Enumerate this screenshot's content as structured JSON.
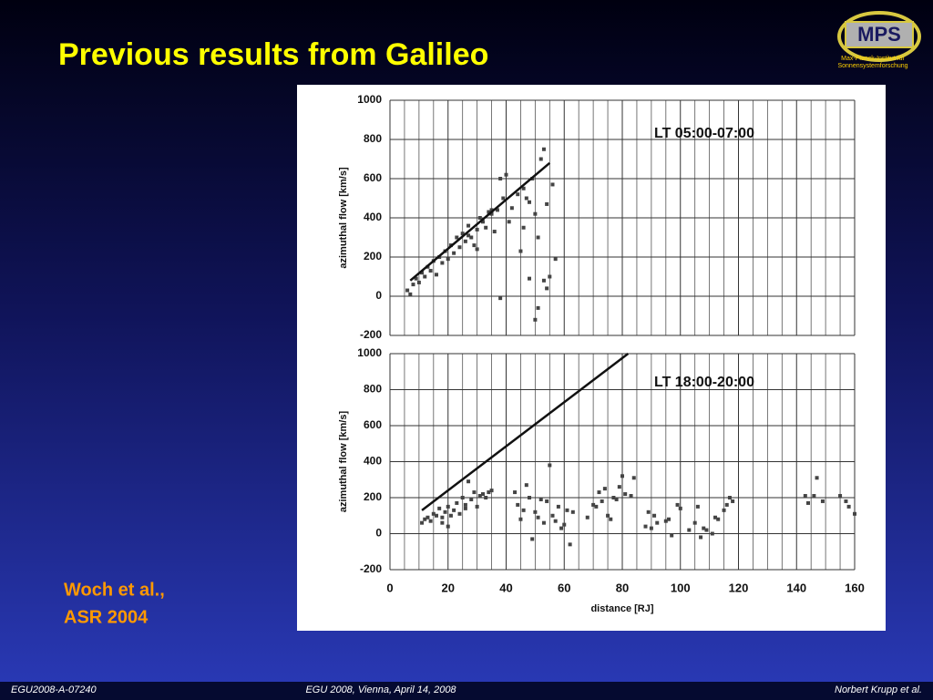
{
  "slide": {
    "title": "Previous results from Galileo",
    "citation": [
      "Woch et al.,",
      "ASR 2004"
    ],
    "footer": [
      "EGU2008-A-07240",
      "EGU 2008, Vienna, April 14, 2008",
      "Norbert Krupp et al."
    ],
    "logo": {
      "text": "MPS",
      "subtitle": [
        "Max-Planck-Institut für",
        "Sonnensystemforschung"
      ]
    }
  },
  "chart_data": [
    {
      "type": "scatter",
      "annotation": "LT 05:00-07:00",
      "ylabel": "azimuthal flow [km/s]",
      "xlim": [
        0,
        160
      ],
      "ylim": [
        -200,
        1000
      ],
      "yticks": [
        -200,
        0,
        200,
        400,
        600,
        800,
        1000
      ],
      "grid": true,
      "color": "#444444",
      "x": [
        6,
        7,
        8,
        9,
        10,
        11,
        12,
        13,
        14,
        15,
        16,
        17,
        18,
        19,
        20,
        21,
        22,
        23,
        24,
        25,
        26,
        27,
        28,
        29,
        30,
        31,
        32,
        33,
        34,
        35,
        36,
        37,
        38,
        39,
        40,
        41,
        42,
        44,
        45,
        46,
        47,
        48,
        49,
        50,
        51,
        52,
        53,
        54,
        55,
        56,
        57,
        50,
        51,
        53,
        54,
        38,
        46,
        48,
        35,
        30,
        27
      ],
      "values": [
        30,
        10,
        60,
        90,
        70,
        120,
        100,
        150,
        130,
        180,
        110,
        200,
        170,
        230,
        190,
        260,
        220,
        300,
        250,
        320,
        280,
        360,
        300,
        260,
        340,
        400,
        380,
        350,
        430,
        420,
        330,
        440,
        600,
        500,
        620,
        380,
        450,
        520,
        230,
        550,
        500,
        480,
        600,
        420,
        300,
        700,
        750,
        470,
        100,
        570,
        190,
        -120,
        -60,
        80,
        40,
        -10,
        350,
        90,
        440,
        240,
        310
      ],
      "fit_line": {
        "x": [
          7,
          55
        ],
        "values": [
          80,
          680
        ]
      }
    },
    {
      "type": "scatter",
      "annotation": "LT 18:00-20:00",
      "ylabel": "azimuthal flow [km/s]",
      "xlabel": "distance [RJ]",
      "xlim": [
        0,
        160
      ],
      "xticks": [
        0,
        20,
        40,
        60,
        80,
        100,
        120,
        140,
        160
      ],
      "ylim": [
        -200,
        1000
      ],
      "yticks": [
        -200,
        0,
        200,
        400,
        600,
        800,
        1000
      ],
      "grid": true,
      "color": "#444444",
      "x": [
        11,
        12,
        13,
        14,
        15,
        16,
        17,
        18,
        19,
        20,
        21,
        22,
        23,
        24,
        25,
        26,
        27,
        28,
        29,
        30,
        31,
        32,
        33,
        34,
        35,
        20,
        26,
        18,
        43,
        44,
        45,
        46,
        47,
        48,
        49,
        50,
        51,
        52,
        53,
        54,
        55,
        56,
        57,
        58,
        59,
        60,
        61,
        62,
        63,
        68,
        70,
        71,
        72,
        73,
        74,
        75,
        76,
        77,
        78,
        79,
        80,
        81,
        83,
        84,
        88,
        89,
        90,
        91,
        92,
        95,
        96,
        97,
        99,
        100,
        103,
        105,
        106,
        107,
        108,
        109,
        111,
        112,
        113,
        115,
        116,
        117,
        118,
        143,
        144,
        146,
        147,
        149,
        155,
        157,
        158,
        160
      ],
      "values": [
        60,
        80,
        90,
        70,
        110,
        100,
        140,
        90,
        120,
        150,
        100,
        130,
        170,
        110,
        200,
        160,
        290,
        190,
        230,
        150,
        210,
        220,
        200,
        230,
        240,
        40,
        140,
        60,
        230,
        160,
        80,
        130,
        270,
        200,
        -30,
        120,
        90,
        190,
        60,
        180,
        380,
        100,
        70,
        150,
        30,
        50,
        130,
        -60,
        120,
        90,
        160,
        150,
        230,
        180,
        250,
        100,
        80,
        200,
        190,
        260,
        320,
        220,
        210,
        310,
        40,
        120,
        30,
        100,
        60,
        70,
        80,
        -10,
        160,
        140,
        20,
        60,
        150,
        -20,
        30,
        20,
        0,
        90,
        80,
        130,
        160,
        200,
        180,
        210,
        170,
        210,
        310,
        180,
        210,
        180,
        150,
        110
      ],
      "fit_line": {
        "x": [
          11,
          82
        ],
        "values": [
          130,
          1000
        ]
      }
    }
  ]
}
